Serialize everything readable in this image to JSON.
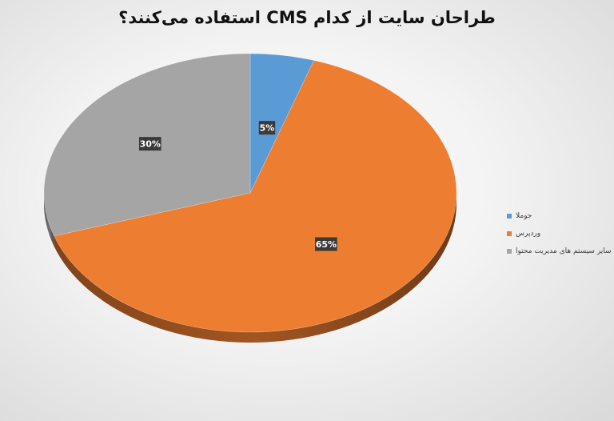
{
  "chart_data": {
    "type": "pie",
    "style": "3d",
    "title": "طراحان سایت از کدام CMS استفاده می‌کنند؟",
    "categories": [
      "جوملا",
      "وردپرس",
      "سایر سیستم های مدیریت محتوا"
    ],
    "values": [
      5,
      65,
      30
    ],
    "data_labels": [
      "5%",
      "65%",
      "30%"
    ],
    "colors": [
      "#5b9bd5",
      "#ed7d31",
      "#a5a5a5"
    ],
    "legend_position": "right"
  }
}
